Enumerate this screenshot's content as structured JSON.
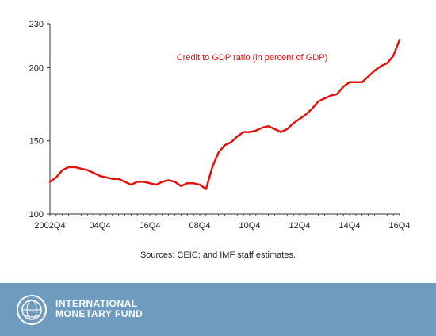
{
  "chart_data": {
    "type": "line",
    "title": "",
    "xlabel": "",
    "ylabel": "",
    "ylim": [
      100,
      230
    ],
    "yticks": [
      100,
      150,
      200,
      230
    ],
    "x_tick_labels": [
      "2002Q4",
      "04Q4",
      "06Q4",
      "08Q4",
      "10Q4",
      "12Q4",
      "14Q4",
      "16Q4"
    ],
    "grid": false,
    "annotation": "Credit to GDP ratio (in percent of GDP)",
    "series": [
      {
        "name": "Credit to GDP ratio (in percent of GDP)",
        "color": "#e4120e",
        "x": [
          "2002Q4",
          "2003Q1",
          "2003Q2",
          "2003Q3",
          "2003Q4",
          "2004Q1",
          "2004Q2",
          "2004Q3",
          "2004Q4",
          "2005Q1",
          "2005Q2",
          "2005Q3",
          "2005Q4",
          "2006Q1",
          "2006Q2",
          "2006Q3",
          "2006Q4",
          "2007Q1",
          "2007Q2",
          "2007Q3",
          "2007Q4",
          "2008Q1",
          "2008Q2",
          "2008Q3",
          "2008Q4",
          "2009Q1",
          "2009Q2",
          "2009Q3",
          "2009Q4",
          "2010Q1",
          "2010Q2",
          "2010Q3",
          "2010Q4",
          "2011Q1",
          "2011Q2",
          "2011Q3",
          "2011Q4",
          "2012Q1",
          "2012Q2",
          "2012Q3",
          "2012Q4",
          "2013Q1",
          "2013Q2",
          "2013Q3",
          "2013Q4",
          "2014Q1",
          "2014Q2",
          "2014Q3",
          "2014Q4",
          "2015Q1",
          "2015Q2",
          "2015Q3",
          "2015Q4",
          "2016Q1",
          "2016Q2",
          "2016Q3",
          "2016Q4"
        ],
        "values": [
          122,
          125,
          130,
          132,
          132,
          131,
          130,
          128,
          126,
          125,
          124,
          124,
          122,
          120,
          122,
          122,
          121,
          120,
          122,
          123,
          122,
          119,
          121,
          121,
          120,
          117,
          132,
          142,
          147,
          149,
          153,
          156,
          156,
          157,
          159,
          160,
          158,
          156,
          158,
          162,
          165,
          168,
          172,
          177,
          179,
          181,
          182,
          187,
          190,
          190,
          190,
          194,
          198,
          201,
          203,
          208,
          219
        ]
      }
    ]
  },
  "footer": {
    "source_note": "Sources: CEIC; and IMF staff estimates.",
    "brand_line1": "INTERNATIONAL",
    "brand_line2": "MONETARY FUND",
    "background_color": "#6f9bbf"
  }
}
